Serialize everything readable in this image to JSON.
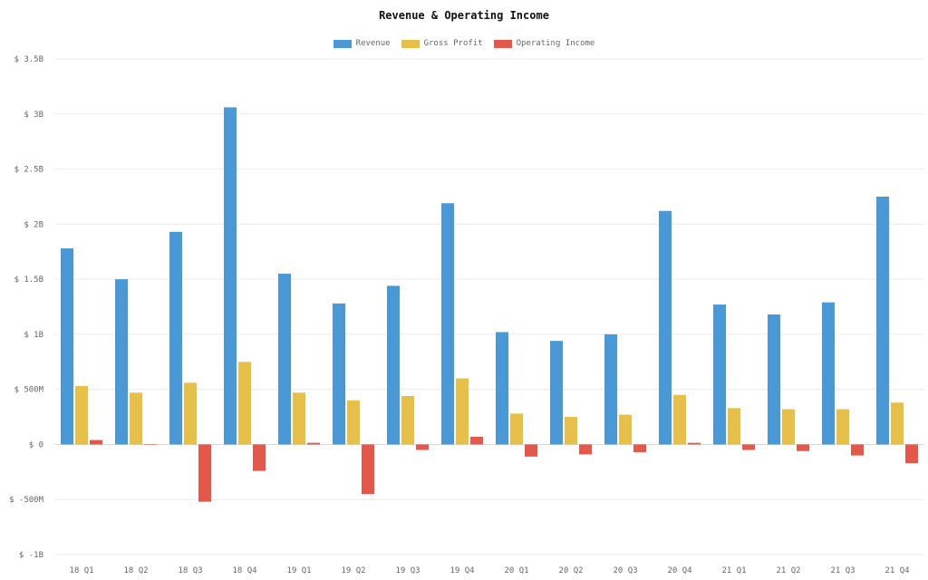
{
  "chart_data": {
    "type": "bar",
    "title": "Revenue & Operating Income",
    "xlabel": "",
    "ylabel": "",
    "ylim": [
      -1000000000,
      3500000000
    ],
    "yticks": [
      {
        "value": 3500000000,
        "label": "$ 3.5B"
      },
      {
        "value": 3000000000,
        "label": "$ 3B"
      },
      {
        "value": 2500000000,
        "label": "$ 2.5B"
      },
      {
        "value": 2000000000,
        "label": "$ 2B"
      },
      {
        "value": 1500000000,
        "label": "$ 1.5B"
      },
      {
        "value": 1000000000,
        "label": "$ 1B"
      },
      {
        "value": 500000000,
        "label": "$ 500M"
      },
      {
        "value": 0,
        "label": "$ 0"
      },
      {
        "value": -500000000,
        "label": "$ -500M"
      },
      {
        "value": -1000000000,
        "label": "$ -1B"
      }
    ],
    "grid": true,
    "legend_position": "top-center",
    "categories": [
      "18 Q1",
      "18 Q2",
      "18 Q3",
      "18 Q4",
      "19 Q1",
      "19 Q2",
      "19 Q3",
      "19 Q4",
      "20 Q1",
      "20 Q2",
      "20 Q3",
      "20 Q4",
      "21 Q1",
      "21 Q2",
      "21 Q3",
      "21 Q4"
    ],
    "series": [
      {
        "name": "Revenue",
        "color": "#4a98d6",
        "values": [
          1780000000,
          1500000000,
          1930000000,
          3060000000,
          1550000000,
          1280000000,
          1440000000,
          2190000000,
          1020000000,
          940000000,
          1000000000,
          2120000000,
          1270000000,
          1180000000,
          1290000000,
          2250000000
        ]
      },
      {
        "name": "Gross Profit",
        "color": "#e6c04a",
        "values": [
          530000000,
          470000000,
          560000000,
          750000000,
          470000000,
          400000000,
          440000000,
          600000000,
          280000000,
          250000000,
          270000000,
          450000000,
          330000000,
          320000000,
          320000000,
          380000000
        ]
      },
      {
        "name": "Operating Income",
        "color": "#e3584a",
        "values": [
          40000000,
          0,
          -520000000,
          -240000000,
          15000000,
          -450000000,
          -50000000,
          70000000,
          -110000000,
          -90000000,
          -70000000,
          15000000,
          -50000000,
          -60000000,
          -100000000,
          -170000000
        ]
      }
    ]
  }
}
